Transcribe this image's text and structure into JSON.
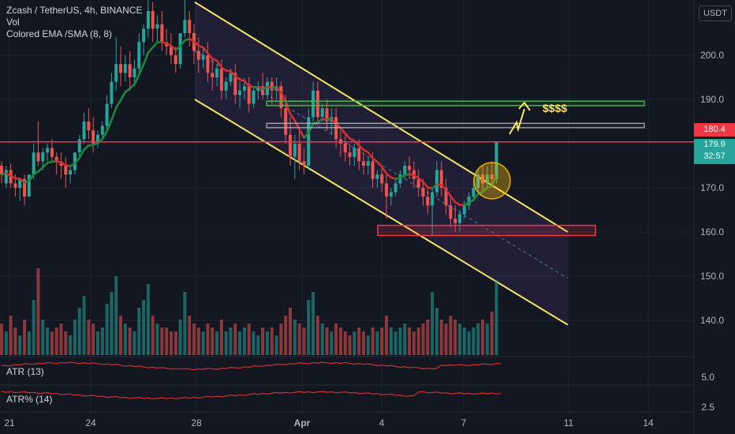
{
  "legend": {
    "title": "Zcash / TetherUS, 4h, BINANCE",
    "vol": "Vol",
    "ema": "Colored EMA /SMA (8, 8)",
    "atr": "ATR (13)",
    "atr_pct": "ATR% (14)"
  },
  "price_axis": {
    "unit": "USDT",
    "ticks": [
      "200.0",
      "190.0",
      "180.0",
      "170.0",
      "160.0",
      "150.0",
      "140.0"
    ],
    "last_price": "180.4",
    "current_price": "179.9",
    "countdown": "32:57"
  },
  "atr_axis": {
    "tick": "5.0"
  },
  "atr_pct_axis": {
    "tick": "2.5"
  },
  "time_axis": {
    "labels": [
      "21",
      "24",
      "28",
      "Apr",
      "4",
      "7",
      "11",
      "14"
    ]
  },
  "annotations": {
    "target": "$$$$"
  },
  "colors": {
    "background": "#131722",
    "up": "#26a69a",
    "down": "#ef5350",
    "channel": "#f5e663",
    "zone_green": "#4caf50",
    "zone_red": "#f23645",
    "price_line": "#f23645"
  },
  "chart_data": {
    "type": "candlestick",
    "symbol": "ZECUSDT",
    "timeframe": "4h",
    "ylim": [
      130,
      215
    ],
    "candles": [
      [
        175.0,
        176.0,
        173.0,
        171.0
      ],
      [
        171.0,
        175.0,
        174.0,
        170.0
      ],
      [
        174.0,
        175.5,
        171.0,
        170.0
      ],
      [
        171.0,
        173.0,
        170.0,
        168.0
      ],
      [
        170.0,
        171.5,
        172.0,
        167.0
      ],
      [
        172.0,
        173.0,
        168.0,
        166.0
      ],
      [
        168.0,
        170.0,
        173.0,
        168.0
      ],
      [
        173.0,
        180.0,
        178.0,
        172.0
      ],
      [
        178.0,
        185.0,
        176.0,
        175.0
      ],
      [
        176.0,
        179.0,
        178.0,
        174.0
      ],
      [
        178.0,
        180.0,
        179.0,
        176.0
      ],
      [
        179.0,
        181.0,
        177.0,
        176.0
      ],
      [
        177.0,
        178.0,
        176.0,
        173.0
      ],
      [
        176.0,
        178.0,
        175.0,
        172.0
      ],
      [
        175.0,
        177.0,
        173.0,
        170.0
      ],
      [
        173.0,
        175.0,
        174.0,
        171.0
      ],
      [
        174.0,
        176.0,
        178.0,
        173.0
      ],
      [
        178.0,
        182.0,
        181.0,
        177.0
      ],
      [
        181.0,
        187.0,
        185.0,
        180.0
      ],
      [
        185.0,
        188.0,
        183.0,
        181.0
      ],
      [
        183.0,
        186.0,
        180.0,
        178.0
      ],
      [
        180.0,
        183.0,
        182.0,
        179.0
      ],
      [
        182.0,
        185.0,
        184.0,
        181.0
      ],
      [
        184.0,
        191.0,
        189.0,
        183.0
      ],
      [
        189.0,
        196.0,
        194.0,
        188.0
      ],
      [
        194.0,
        204.0,
        198.0,
        192.0
      ],
      [
        198.0,
        202.0,
        196.0,
        193.0
      ],
      [
        196.0,
        200.0,
        198.0,
        194.0
      ],
      [
        198.0,
        201.0,
        195.0,
        192.0
      ],
      [
        195.0,
        199.0,
        197.0,
        193.0
      ],
      [
        197.0,
        205.0,
        203.0,
        196.0
      ],
      [
        203.0,
        207.0,
        206.0,
        200.0
      ],
      [
        206.0,
        214.0,
        210.0,
        204.0
      ],
      [
        210.0,
        212.0,
        206.0,
        203.0
      ],
      [
        206.0,
        209.0,
        207.0,
        203.0
      ],
      [
        207.0,
        210.0,
        203.0,
        201.0
      ],
      [
        203.0,
        206.0,
        202.0,
        200.0
      ],
      [
        202.0,
        205.0,
        200.0,
        198.0
      ],
      [
        200.0,
        202.0,
        198.0,
        196.0
      ],
      [
        198.0,
        201.0,
        205.0,
        197.0
      ],
      [
        205.0,
        213.0,
        208.0,
        204.0
      ],
      [
        208.0,
        210.0,
        205.0,
        202.0
      ],
      [
        205.0,
        207.0,
        201.0,
        198.0
      ],
      [
        201.0,
        204.0,
        199.0,
        196.0
      ],
      [
        199.0,
        202.0,
        200.0,
        197.0
      ],
      [
        200.0,
        203.0,
        196.0,
        194.0
      ],
      [
        196.0,
        199.0,
        195.0,
        192.0
      ],
      [
        195.0,
        198.0,
        197.0,
        193.0
      ],
      [
        197.0,
        199.0,
        192.0,
        190.0
      ],
      [
        192.0,
        195.0,
        194.0,
        190.0
      ],
      [
        194.0,
        197.0,
        196.0,
        193.0
      ],
      [
        196.0,
        198.0,
        191.0,
        189.0
      ],
      [
        191.0,
        194.0,
        192.0,
        188.0
      ],
      [
        192.0,
        195.0,
        193.0,
        190.0
      ],
      [
        193.0,
        195.0,
        189.0,
        187.0
      ],
      [
        189.0,
        193.0,
        192.0,
        188.0
      ],
      [
        192.0,
        194.0,
        193.0,
        190.0
      ],
      [
        193.0,
        196.0,
        191.0,
        190.0
      ],
      [
        191.0,
        195.0,
        194.0,
        190.0
      ],
      [
        194.0,
        195.0,
        192.0,
        189.0
      ],
      [
        192.0,
        195.0,
        193.0,
        190.0
      ],
      [
        193.0,
        194.0,
        188.0,
        186.0
      ],
      [
        188.0,
        191.0,
        182.0,
        180.0
      ],
      [
        182.0,
        186.0,
        177.0,
        175.0
      ],
      [
        177.0,
        182.0,
        180.0,
        172.0
      ],
      [
        180.0,
        183.0,
        176.0,
        174.0
      ],
      [
        176.0,
        179.0,
        175.0,
        173.0
      ],
      [
        175.0,
        188.0,
        186.0,
        174.0
      ],
      [
        186.0,
        194.0,
        192.0,
        185.0
      ],
      [
        192.0,
        194.0,
        186.0,
        184.0
      ],
      [
        186.0,
        189.0,
        188.0,
        185.0
      ],
      [
        188.0,
        190.0,
        185.0,
        183.0
      ],
      [
        185.0,
        188.0,
        186.0,
        182.0
      ],
      [
        186.0,
        188.0,
        181.0,
        179.0
      ],
      [
        181.0,
        183.0,
        180.0,
        177.0
      ],
      [
        180.0,
        182.0,
        178.0,
        176.0
      ],
      [
        178.0,
        180.0,
        177.0,
        175.0
      ],
      [
        177.0,
        180.0,
        179.0,
        175.0
      ],
      [
        179.0,
        181.0,
        176.0,
        174.0
      ],
      [
        176.0,
        178.0,
        175.0,
        173.0
      ],
      [
        175.0,
        177.0,
        176.0,
        173.0
      ],
      [
        176.0,
        178.0,
        172.0,
        170.0
      ],
      [
        172.0,
        174.0,
        173.0,
        170.0
      ],
      [
        173.0,
        175.0,
        171.0,
        169.0
      ],
      [
        171.0,
        173.0,
        168.0,
        163.0
      ],
      [
        168.0,
        170.0,
        169.0,
        166.0
      ],
      [
        169.0,
        172.0,
        171.0,
        168.0
      ],
      [
        171.0,
        174.0,
        173.0,
        170.0
      ],
      [
        173.0,
        176.0,
        175.0,
        172.0
      ],
      [
        175.0,
        177.0,
        174.0,
        172.0
      ],
      [
        174.0,
        176.0,
        172.0,
        170.0
      ],
      [
        172.0,
        174.0,
        170.0,
        168.0
      ],
      [
        170.0,
        172.0,
        168.0,
        166.0
      ],
      [
        168.0,
        170.0,
        166.0,
        164.0
      ],
      [
        166.0,
        170.0,
        169.0,
        159.0
      ],
      [
        169.0,
        176.0,
        174.0,
        168.0
      ],
      [
        174.0,
        176.0,
        170.0,
        168.0
      ],
      [
        170.0,
        172.0,
        166.0,
        164.0
      ],
      [
        166.0,
        168.0,
        163.0,
        161.0
      ],
      [
        163.0,
        166.0,
        162.0,
        160.0
      ],
      [
        162.0,
        165.0,
        164.0,
        160.0
      ],
      [
        164.0,
        167.0,
        166.0,
        163.0
      ],
      [
        166.0,
        169.0,
        168.0,
        165.0
      ],
      [
        168.0,
        172.0,
        170.0,
        167.0
      ],
      [
        170.0,
        174.0,
        173.0,
        169.0
      ],
      [
        173.0,
        175.0,
        171.0,
        169.0
      ],
      [
        171.0,
        175.0,
        173.0,
        170.0
      ],
      [
        173.0,
        176.0,
        172.0,
        170.0
      ],
      [
        172.0,
        180.0,
        180.4,
        171.0
      ]
    ],
    "volume": [
      8,
      6,
      10,
      7,
      5,
      9,
      6,
      14,
      22,
      9,
      7,
      6,
      7,
      8,
      6,
      5,
      9,
      12,
      15,
      9,
      8,
      6,
      7,
      13,
      16,
      20,
      10,
      8,
      7,
      6,
      12,
      14,
      18,
      10,
      8,
      7,
      7,
      6,
      6,
      9,
      16,
      10,
      8,
      7,
      6,
      8,
      7,
      6,
      9,
      6,
      7,
      8,
      6,
      7,
      8,
      6,
      5,
      7,
      6,
      7,
      5,
      8,
      10,
      12,
      9,
      8,
      7,
      14,
      16,
      10,
      8,
      7,
      6,
      8,
      7,
      6,
      5,
      6,
      7,
      6,
      5,
      7,
      6,
      7,
      10,
      7,
      6,
      7,
      8,
      7,
      6,
      7,
      8,
      9,
      16,
      12,
      9,
      8,
      10,
      9,
      8,
      7,
      6,
      7,
      8,
      9,
      8,
      11,
      19
    ],
    "ema_sma_period": [
      8,
      8
    ],
    "horizontal_levels": {
      "last_price": 180.4,
      "zone_green": [
        188.6,
        189.6
      ],
      "zone_gray": [
        183.6,
        184.6
      ],
      "zone_red": [
        159.2,
        161.5
      ]
    },
    "channel": {
      "upper_start": 212,
      "upper_end": 160,
      "lower_start": 190,
      "lower_end": 139
    }
  }
}
